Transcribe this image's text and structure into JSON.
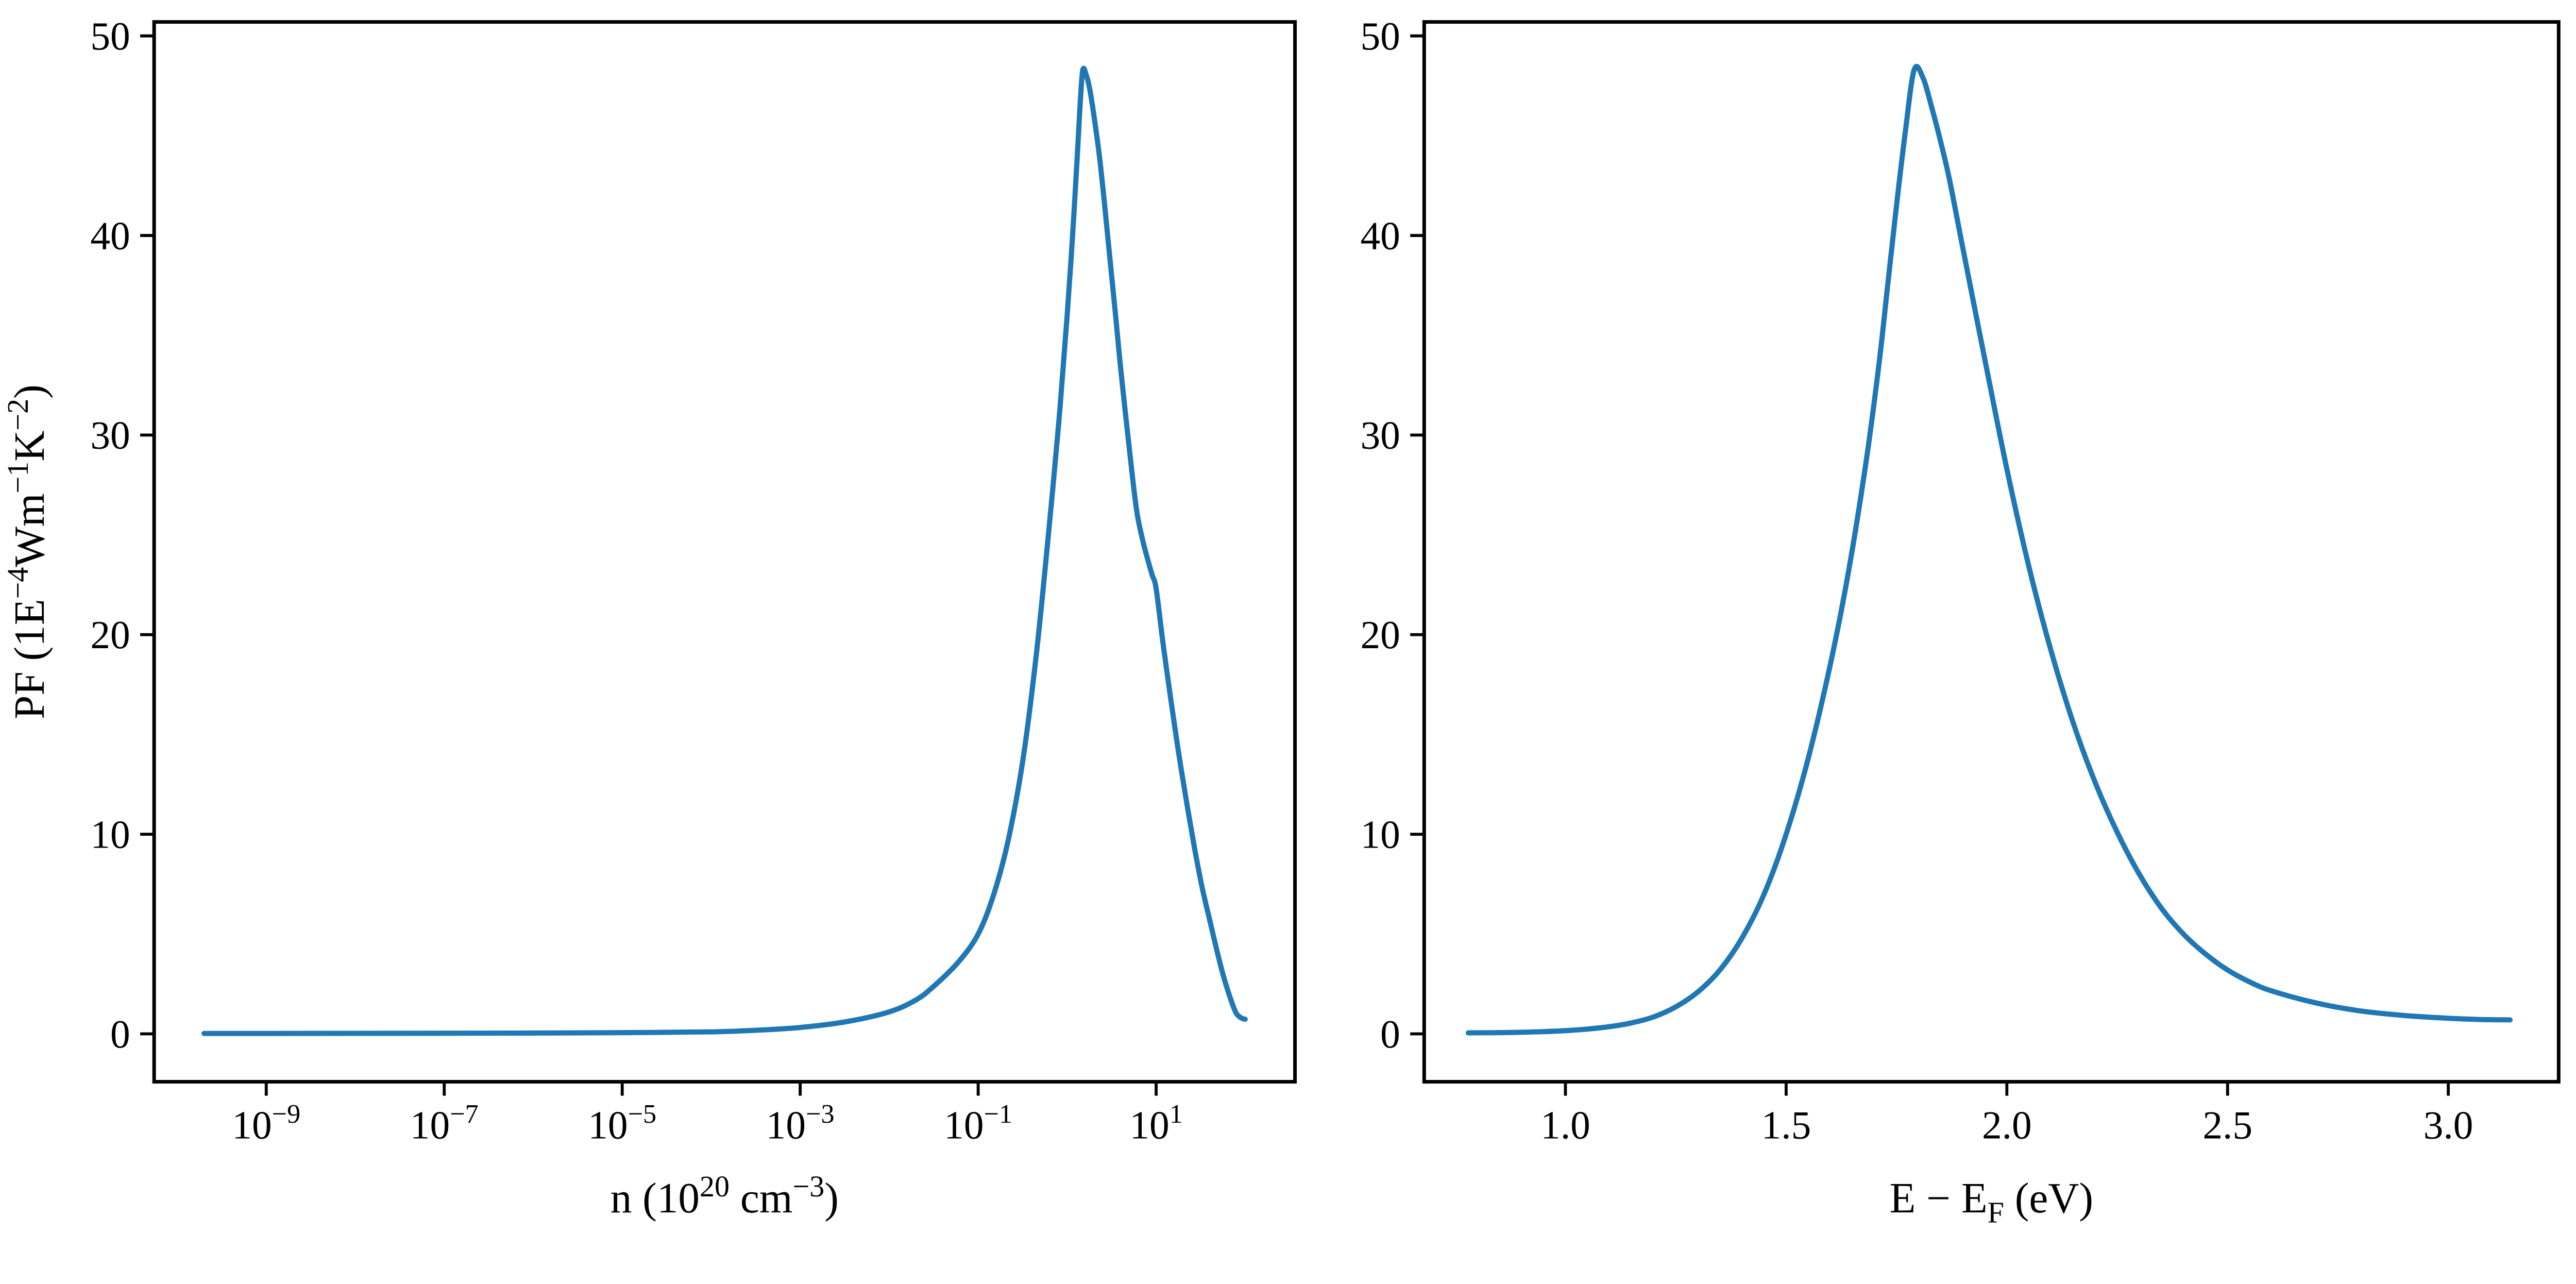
{
  "figure": {
    "background": "#ffffff",
    "text_color": "#000000",
    "line_color": "#1f77b4"
  },
  "chart_data": [
    {
      "type": "line",
      "id": "pf-vs-n",
      "title": "",
      "xlabel": "n (10^20 cm^-3)",
      "ylabel": "PF (1E^-4 Wm^-1 K^-2)",
      "xlabel_segments": [
        {
          "t": "n (10"
        },
        {
          "sup": "20"
        },
        {
          "t": " cm"
        },
        {
          "sup": "−3"
        },
        {
          "t": ")"
        }
      ],
      "ylabel_segments": [
        {
          "t": "PF (1E"
        },
        {
          "sup": "−4"
        },
        {
          "t": "Wm"
        },
        {
          "sup": "−1"
        },
        {
          "t": "K"
        },
        {
          "sup": "−2"
        },
        {
          "t": ")"
        }
      ],
      "xscale": "log",
      "xlim_log10": [
        -10.26,
        2.56
      ],
      "ylim": [
        -2.4,
        50.7
      ],
      "xtick_exponents": [
        -9,
        -7,
        -5,
        -3,
        -1,
        1
      ],
      "yticks": [
        0,
        10,
        20,
        30,
        40,
        50
      ],
      "grid": false,
      "legend": null,
      "peak": {
        "x": 1.5,
        "y": 48.3
      },
      "series": [
        {
          "name": "PF",
          "points": [
            [
              2e-10,
              0.02
            ],
            [
              1e-09,
              0.02
            ],
            [
              1e-08,
              0.025
            ],
            [
              1e-07,
              0.03
            ],
            [
              1e-06,
              0.04
            ],
            [
              1e-05,
              0.06
            ],
            [
              0.0001,
              0.1
            ],
            [
              0.00032,
              0.18
            ],
            [
              0.001,
              0.32
            ],
            [
              0.0032,
              0.6
            ],
            [
              0.01,
              1.1
            ],
            [
              0.02,
              1.7
            ],
            [
              0.032,
              2.4
            ],
            [
              0.06,
              3.6
            ],
            [
              0.1,
              5.0
            ],
            [
              0.15,
              7.0
            ],
            [
              0.22,
              9.8
            ],
            [
              0.32,
              13.8
            ],
            [
              0.45,
              19.0
            ],
            [
              0.6,
              24.5
            ],
            [
              0.8,
              30.5
            ],
            [
              1.0,
              36.0
            ],
            [
              1.15,
              40.0
            ],
            [
              1.3,
              44.0
            ],
            [
              1.4,
              46.6
            ],
            [
              1.5,
              48.3
            ],
            [
              1.65,
              48.0
            ],
            [
              1.8,
              47.3
            ],
            [
              2.0,
              46.0
            ],
            [
              2.3,
              44.0
            ],
            [
              2.6,
              41.8
            ],
            [
              3.0,
              39.0
            ],
            [
              3.5,
              36.0
            ],
            [
              4.0,
              33.3
            ],
            [
              5.0,
              29.3
            ],
            [
              6.0,
              26.3
            ],
            [
              7.0,
              24.8
            ],
            [
              8.0,
              23.8
            ],
            [
              9.0,
              23.0
            ],
            [
              10,
              22.3
            ],
            [
              12,
              19.5
            ],
            [
              15,
              16.4
            ],
            [
              18,
              14.0
            ],
            [
              22,
              11.6
            ],
            [
              27,
              9.3
            ],
            [
              33,
              7.3
            ],
            [
              40,
              5.7
            ],
            [
              48,
              4.2
            ],
            [
              57,
              2.9
            ],
            [
              68,
              1.8
            ],
            [
              78,
              1.1
            ],
            [
              85,
              0.88
            ],
            [
              92,
              0.78
            ],
            [
              100,
              0.73
            ]
          ]
        }
      ]
    },
    {
      "type": "line",
      "id": "pf-vs-energy",
      "title": "",
      "xlabel": "E − E_F (eV)",
      "ylabel": "",
      "xlabel_segments": [
        {
          "t": "E − E"
        },
        {
          "sub": "F"
        },
        {
          "t": " (eV)"
        }
      ],
      "ylabel_segments": [],
      "xscale": "linear",
      "xlim": [
        0.68,
        3.25
      ],
      "ylim": [
        -2.4,
        50.7
      ],
      "xticks": [
        {
          "v": 1.0,
          "label": "1.0"
        },
        {
          "v": 1.5,
          "label": "1.5"
        },
        {
          "v": 2.0,
          "label": "2.0"
        },
        {
          "v": 2.5,
          "label": "2.5"
        },
        {
          "v": 3.0,
          "label": "3.0"
        }
      ],
      "yticks": [
        0,
        10,
        20,
        30,
        40,
        50
      ],
      "grid": false,
      "legend": null,
      "peak": {
        "x": 1.79,
        "y": 48.3
      },
      "series": [
        {
          "name": "PF",
          "points": [
            [
              0.78,
              0.05
            ],
            [
              0.85,
              0.06
            ],
            [
              0.9,
              0.08
            ],
            [
              0.95,
              0.11
            ],
            [
              1.0,
              0.16
            ],
            [
              1.05,
              0.24
            ],
            [
              1.1,
              0.36
            ],
            [
              1.15,
              0.55
            ],
            [
              1.2,
              0.85
            ],
            [
              1.25,
              1.35
            ],
            [
              1.3,
              2.1
            ],
            [
              1.35,
              3.2
            ],
            [
              1.4,
              4.8
            ],
            [
              1.45,
              7.0
            ],
            [
              1.5,
              10.0
            ],
            [
              1.55,
              13.8
            ],
            [
              1.6,
              18.5
            ],
            [
              1.64,
              23.0
            ],
            [
              1.68,
              28.5
            ],
            [
              1.71,
              33.5
            ],
            [
              1.73,
              37.5
            ],
            [
              1.75,
              41.5
            ],
            [
              1.77,
              45.2
            ],
            [
              1.79,
              48.3
            ],
            [
              1.81,
              47.9
            ],
            [
              1.83,
              46.4
            ],
            [
              1.85,
              44.7
            ],
            [
              1.87,
              42.8
            ],
            [
              1.9,
              39.4
            ],
            [
              1.95,
              33.8
            ],
            [
              2.0,
              28.3
            ],
            [
              2.05,
              23.4
            ],
            [
              2.1,
              19.2
            ],
            [
              2.15,
              15.6
            ],
            [
              2.2,
              12.6
            ],
            [
              2.25,
              10.1
            ],
            [
              2.3,
              8.0
            ],
            [
              2.35,
              6.3
            ],
            [
              2.4,
              5.0
            ],
            [
              2.45,
              4.0
            ],
            [
              2.5,
              3.2
            ],
            [
              2.55,
              2.6
            ],
            [
              2.6,
              2.15
            ],
            [
              2.7,
              1.55
            ],
            [
              2.8,
              1.15
            ],
            [
              2.9,
              0.92
            ],
            [
              3.0,
              0.78
            ],
            [
              3.07,
              0.72
            ],
            [
              3.14,
              0.7
            ]
          ]
        }
      ]
    }
  ]
}
